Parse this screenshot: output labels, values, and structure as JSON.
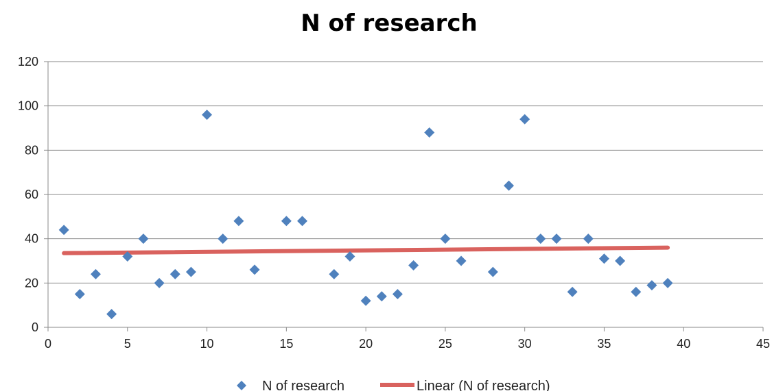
{
  "chart_data": {
    "type": "scatter",
    "title": "N of research",
    "xlabel": "",
    "ylabel": "",
    "xlim": [
      0,
      45
    ],
    "ylim": [
      0,
      120
    ],
    "x_ticks": [
      0,
      5,
      10,
      15,
      20,
      25,
      30,
      35,
      40,
      45
    ],
    "y_ticks": [
      0,
      20,
      40,
      60,
      80,
      100,
      120
    ],
    "grid": "horizontal",
    "legend_position": "bottom",
    "series": [
      {
        "name": "N of research",
        "marker": "diamond",
        "color": "#4F81BD",
        "points": [
          [
            1,
            44
          ],
          [
            2,
            15
          ],
          [
            3,
            24
          ],
          [
            4,
            6
          ],
          [
            5,
            32
          ],
          [
            6,
            40
          ],
          [
            7,
            20
          ],
          [
            8,
            24
          ],
          [
            9,
            25
          ],
          [
            10,
            96
          ],
          [
            11,
            40
          ],
          [
            12,
            48
          ],
          [
            13,
            26
          ],
          [
            15,
            48
          ],
          [
            16,
            48
          ],
          [
            18,
            24
          ],
          [
            19,
            32
          ],
          [
            20,
            12
          ],
          [
            21,
            14
          ],
          [
            22,
            15
          ],
          [
            23,
            28
          ],
          [
            24,
            88
          ],
          [
            25,
            40
          ],
          [
            26,
            30
          ],
          [
            28,
            25
          ],
          [
            29,
            64
          ],
          [
            30,
            94
          ],
          [
            31,
            40
          ],
          [
            32,
            40
          ],
          [
            33,
            16
          ],
          [
            34,
            40
          ],
          [
            35,
            31
          ],
          [
            36,
            30
          ],
          [
            37,
            16
          ],
          [
            38,
            19
          ],
          [
            39,
            20
          ]
        ]
      }
    ],
    "trendline": {
      "name": "Linear (N of research)",
      "type": "linear",
      "color": "#D9625E",
      "x": [
        1,
        39
      ],
      "y": [
        33.5,
        36
      ]
    }
  }
}
